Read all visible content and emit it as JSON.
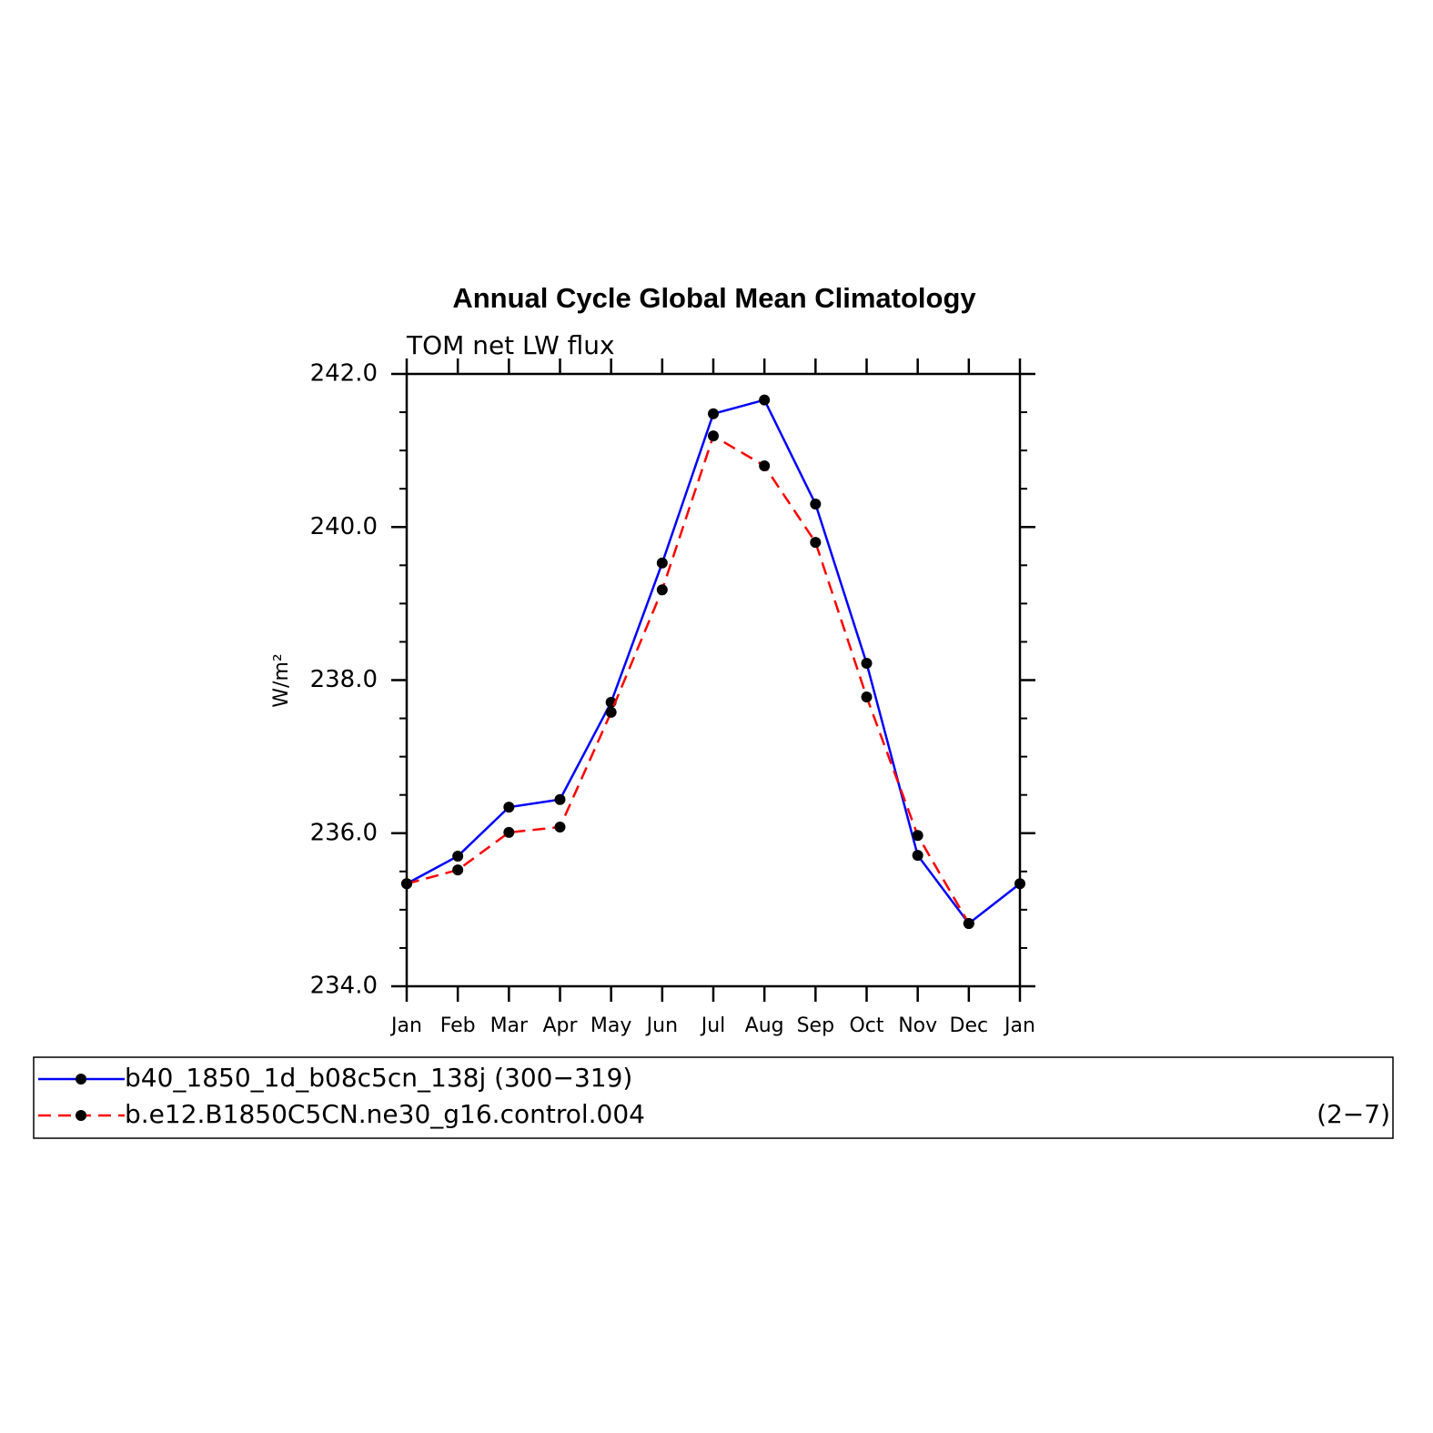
{
  "chart_data": {
    "type": "line",
    "title": "Annual Cycle Global Mean Climatology",
    "subtitle": "TOM net LW flux",
    "y_label": "W/m²",
    "annotation": "(2−7)",
    "categories": [
      "Jan",
      "Feb",
      "Mar",
      "Apr",
      "May",
      "Jun",
      "Jul",
      "Aug",
      "Sep",
      "Oct",
      "Nov",
      "Dec",
      "Jan"
    ],
    "series": [
      {
        "name": "b40_1850_1d_b08c5cn_138j (300−319)",
        "color": "#0000ff",
        "dash": false,
        "values": [
          235.34,
          235.7,
          236.34,
          236.44,
          237.71,
          239.53,
          241.48,
          241.66,
          240.3,
          238.22,
          235.71,
          234.82,
          235.34
        ]
      },
      {
        "name": "b.e12.B1850C5CN.ne30_g16.control.004",
        "color": "#ff0000",
        "dash": true,
        "values": [
          235.34,
          235.52,
          236.01,
          236.08,
          237.58,
          239.18,
          241.19,
          240.8,
          239.8,
          237.78,
          235.97,
          234.82,
          null
        ]
      }
    ],
    "ylim": [
      234,
      242
    ],
    "yticks": [
      {
        "value": 234,
        "label": "234.0"
      },
      {
        "value": 236,
        "label": "236.0"
      },
      {
        "value": 238,
        "label": "238.0"
      },
      {
        "value": 240,
        "label": "240.0"
      },
      {
        "value": 242,
        "label": "242.0"
      }
    ]
  }
}
